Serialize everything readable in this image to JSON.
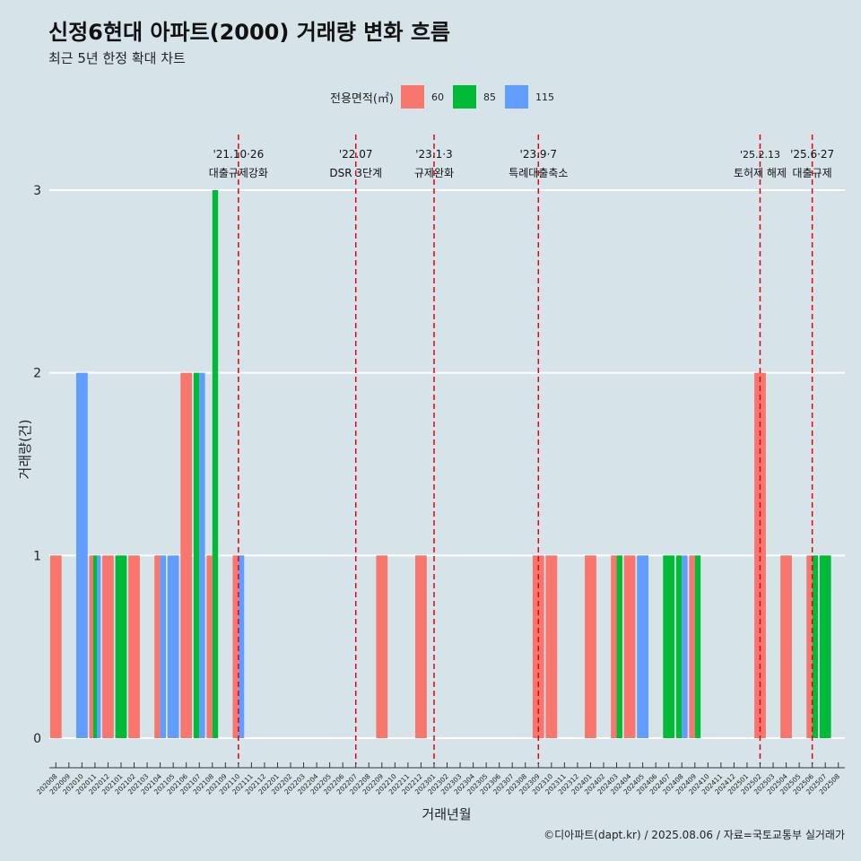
{
  "title": "신정6현대 아파트(2000) 거래량 변화 흐름",
  "subtitle": "최근 5년 한정 확대 차트",
  "caption": "©디아파트(dapt.kr) / 2025.08.06 / 자료=국토교통부 실거래가",
  "legend": {
    "title": "전용면적(㎡)",
    "items": [
      {
        "label": "60",
        "color": "#f8766d"
      },
      {
        "label": "85",
        "color": "#00ba38"
      },
      {
        "label": "115",
        "color": "#619cff"
      }
    ]
  },
  "chart_data": {
    "type": "bar",
    "xlabel": "거래년월",
    "ylabel": "거래량(건)",
    "ylim": [
      0,
      3
    ],
    "yticks": [
      "0",
      "1",
      "2",
      "3"
    ],
    "grid": "horizontal",
    "legend_position": "top",
    "categories": [
      "202008",
      "202009",
      "202010",
      "202011",
      "202012",
      "202101",
      "202102",
      "202103",
      "202104",
      "202105",
      "202106",
      "202107",
      "202108",
      "202109",
      "202110",
      "202111",
      "202112",
      "202201",
      "202202",
      "202203",
      "202204",
      "202205",
      "202206",
      "202207",
      "202208",
      "202209",
      "202210",
      "202211",
      "202212",
      "202301",
      "202302",
      "202303",
      "202304",
      "202305",
      "202306",
      "202307",
      "202308",
      "202309",
      "202310",
      "202311",
      "202312",
      "202401",
      "202402",
      "202403",
      "202404",
      "202405",
      "202406",
      "202407",
      "202408",
      "202409",
      "202410",
      "202411",
      "202412",
      "202501",
      "202502",
      "202503",
      "202504",
      "202505",
      "202506",
      "202507",
      "202508"
    ],
    "series": [
      {
        "name": "60",
        "color": "#f8766d",
        "values": [
          1,
          0,
          0,
          1,
          1,
          0,
          1,
          0,
          1,
          0,
          2,
          0,
          1,
          0,
          1,
          0,
          0,
          0,
          0,
          0,
          0,
          0,
          0,
          0,
          0,
          1,
          0,
          0,
          1,
          0,
          0,
          0,
          0,
          0,
          0,
          0,
          0,
          1,
          1,
          0,
          0,
          1,
          0,
          1,
          1,
          0,
          0,
          0,
          0,
          1,
          0,
          0,
          0,
          0,
          2,
          0,
          1,
          0,
          1,
          0,
          0
        ]
      },
      {
        "name": "85",
        "color": "#00ba38",
        "values": [
          0,
          0,
          0,
          1,
          0,
          1,
          0,
          0,
          0,
          0,
          0,
          2,
          3,
          0,
          0,
          0,
          0,
          0,
          0,
          0,
          0,
          0,
          0,
          0,
          0,
          0,
          0,
          0,
          0,
          0,
          0,
          0,
          0,
          0,
          0,
          0,
          0,
          0,
          0,
          0,
          0,
          0,
          0,
          1,
          0,
          0,
          0,
          1,
          1,
          1,
          0,
          0,
          0,
          0,
          0,
          0,
          0,
          0,
          1,
          1,
          0
        ]
      },
      {
        "name": "115",
        "color": "#619cff",
        "values": [
          0,
          0,
          2,
          1,
          0,
          0,
          0,
          0,
          1,
          1,
          0,
          2,
          0,
          0,
          1,
          0,
          0,
          0,
          0,
          0,
          0,
          0,
          0,
          0,
          0,
          0,
          0,
          0,
          0,
          0,
          0,
          0,
          0,
          0,
          0,
          0,
          0,
          0,
          0,
          0,
          0,
          0,
          0,
          0,
          0,
          1,
          0,
          0,
          1,
          0,
          0,
          0,
          0,
          0,
          0,
          0,
          0,
          0,
          0,
          0,
          0
        ]
      }
    ],
    "annotations": [
      {
        "x": "202110",
        "date": "'21.10·26",
        "label": "대출규제강화"
      },
      {
        "x": "202207",
        "date": "'22.07",
        "label": "DSR 3단계"
      },
      {
        "x": "202301",
        "date": "'23.1·3",
        "label": "규제완화"
      },
      {
        "x": "202309",
        "date": "'23.9·7",
        "label": "특례대출축소"
      },
      {
        "x": "202502",
        "date": "'25.2.13",
        "label": "토허제 해제"
      },
      {
        "x": "202506",
        "date": "'25.6·27",
        "label": "대출규제"
      }
    ]
  }
}
